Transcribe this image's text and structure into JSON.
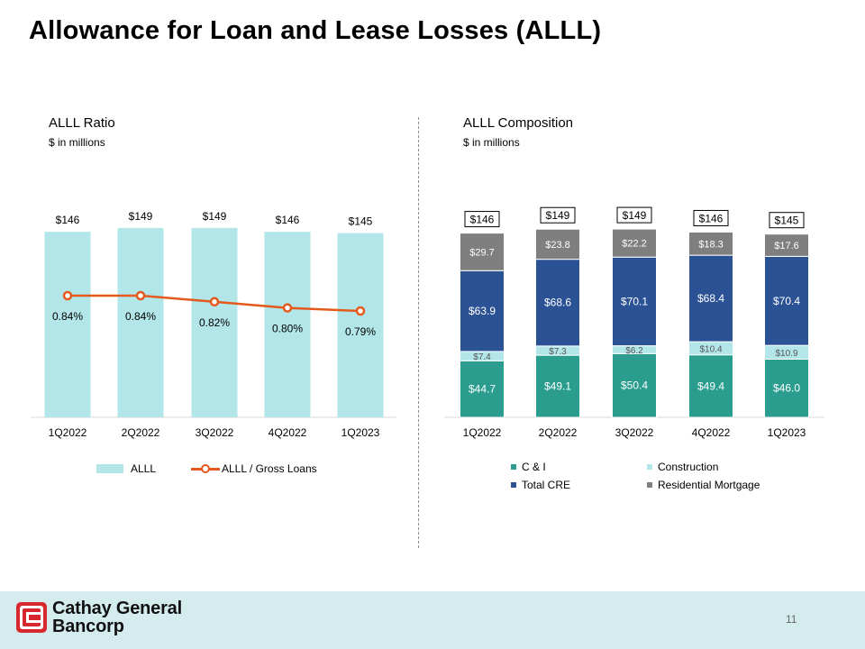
{
  "page": {
    "title": "Allowance for Loan and Lease Losses (ALLL)",
    "page_number": "11"
  },
  "left": {
    "title": "ALLL Ratio",
    "unit": "$ in millions"
  },
  "right": {
    "title": "ALLL Composition",
    "unit": "$ in millions"
  },
  "logo": {
    "line1": "Cathay General",
    "line2": "Bancorp"
  },
  "colors": {
    "alll_bar": "#b2e6e8",
    "ratio_line": "#e35a1c",
    "ci": "#2a9d8f",
    "construction": "#b2e6e8",
    "total_cre": "#2b5294",
    "residential_mortgage": "#7f7f7f"
  },
  "chart_data": [
    {
      "type": "bar",
      "title": "ALLL Ratio",
      "categories": [
        "1Q2022",
        "2Q2022",
        "3Q2022",
        "4Q2022",
        "1Q2023"
      ],
      "series": [
        {
          "name": "ALLL",
          "type": "bar",
          "values": [
            146,
            149,
            149,
            146,
            145
          ],
          "labels": [
            "$146",
            "$149",
            "$149",
            "$146",
            "$145"
          ]
        },
        {
          "name": "ALLL / Gross Loans",
          "type": "line",
          "values": [
            0.84,
            0.84,
            0.82,
            0.8,
            0.79
          ],
          "labels": [
            "0.84%",
            "0.84%",
            "0.82%",
            "0.80%",
            "0.79%"
          ]
        }
      ],
      "legend": [
        "ALLL",
        "ALLL / Gross Loans"
      ],
      "legend_position": "bottom"
    },
    {
      "type": "bar",
      "stacked": true,
      "title": "ALLL Composition",
      "categories": [
        "1Q2022",
        "2Q2022",
        "3Q2022",
        "4Q2022",
        "1Q2023"
      ],
      "series": [
        {
          "name": "C & I",
          "values": [
            44.7,
            49.1,
            50.4,
            49.4,
            46.0
          ],
          "labels": [
            "$44.7",
            "$49.1",
            "$50.4",
            "$49.4",
            "$46.0"
          ]
        },
        {
          "name": "Construction",
          "values": [
            7.4,
            7.3,
            6.2,
            10.4,
            10.9
          ],
          "labels": [
            "$7.4",
            "$7.3",
            "$6.2",
            "$10.4",
            "$10.9"
          ]
        },
        {
          "name": "Total CRE",
          "values": [
            63.9,
            68.6,
            70.1,
            68.4,
            70.4
          ],
          "labels": [
            "$63.9",
            "$68.6",
            "$70.1",
            "$68.4",
            "$70.4"
          ]
        },
        {
          "name": "Residential Mortgage",
          "values": [
            29.7,
            23.8,
            22.2,
            18.3,
            17.6
          ],
          "labels": [
            "$29.7",
            "$23.8",
            "$22.2",
            "$18.3",
            "$17.6"
          ]
        }
      ],
      "totals": [
        "$146",
        "$149",
        "$149",
        "$146",
        "$145"
      ],
      "legend": [
        "C & I",
        "Construction",
        "Total CRE",
        "Residential Mortgage"
      ],
      "legend_position": "bottom"
    }
  ]
}
